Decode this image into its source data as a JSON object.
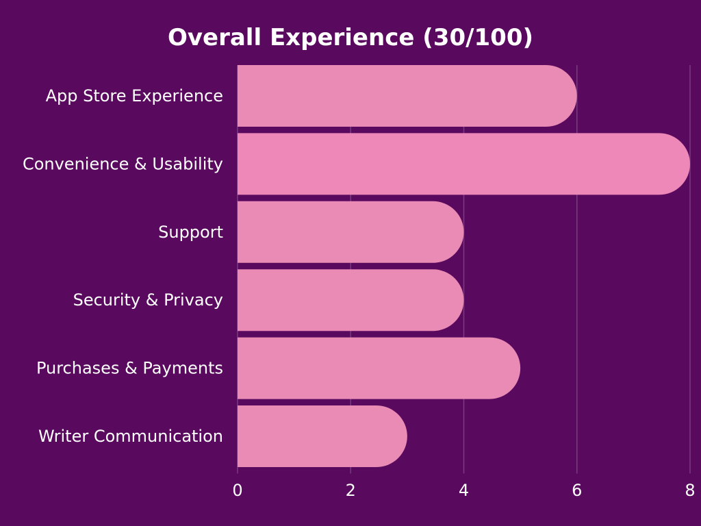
{
  "chart_data": {
    "type": "bar",
    "orientation": "horizontal",
    "title": "Overall Experience (30/100)",
    "xlabel": "",
    "ylabel": "",
    "categories": [
      "App Store Experience",
      "Convenience & Usability",
      "Support",
      "Security & Privacy",
      "Purchases & Payments",
      "Writer Communication"
    ],
    "values": [
      6,
      8,
      4,
      4,
      5,
      3
    ],
    "xlim": [
      0,
      8
    ],
    "x_ticks": [
      0,
      2,
      4,
      6,
      8
    ],
    "x_tick_labels": [
      "0",
      "2",
      "4",
      "6",
      "8"
    ],
    "grid": true,
    "legend": "none"
  },
  "colors": {
    "background": "#5a0a5e",
    "bar": "#e98bb4",
    "bar_highlight": "#ee88b8",
    "grid": "#7a3a80",
    "text": "#ffffff"
  }
}
